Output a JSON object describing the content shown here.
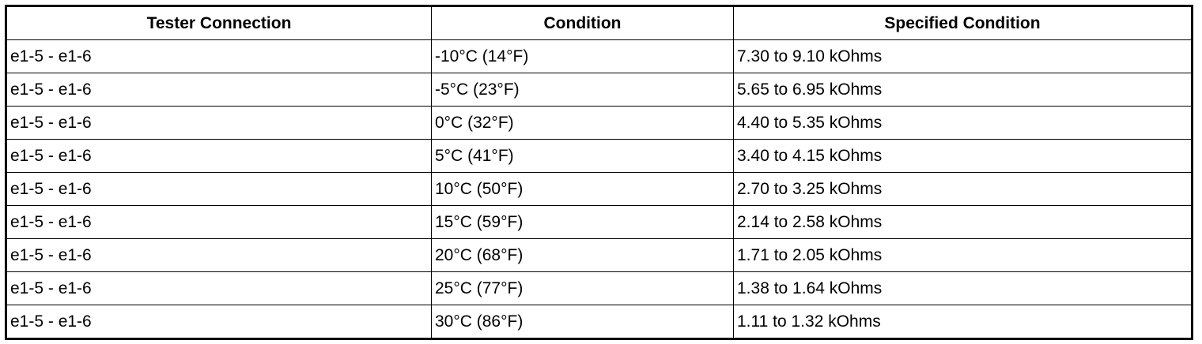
{
  "table": {
    "header": [
      "Tester Connection",
      "Condition",
      "Specified Condition"
    ],
    "rows": [
      [
        "e1-5 - e1-6",
        "-10°C (14°F)",
        "7.30 to 9.10 kOhms"
      ],
      [
        "e1-5 - e1-6",
        "-5°C (23°F)",
        "5.65 to 6.95 kOhms"
      ],
      [
        "e1-5 - e1-6",
        "0°C (32°F)",
        "4.40 to 5.35 kOhms"
      ],
      [
        "e1-5 - e1-6",
        "5°C (41°F)",
        "3.40 to 4.15 kOhms"
      ],
      [
        "e1-5 - e1-6",
        "10°C (50°F)",
        "2.70 to 3.25 kOhms"
      ],
      [
        "e1-5 - e1-6",
        "15°C (59°F)",
        "2.14 to 2.58 kOhms"
      ],
      [
        "e1-5 - e1-6",
        "20°C (68°F)",
        "1.71 to 2.05 kOhms"
      ],
      [
        "e1-5 - e1-6",
        "25°C (77°F)",
        "1.38 to 1.64 kOhms"
      ],
      [
        "e1-5 - e1-6",
        "30°C (86°F)",
        "1.11 to 1.32 kOhms"
      ]
    ]
  }
}
